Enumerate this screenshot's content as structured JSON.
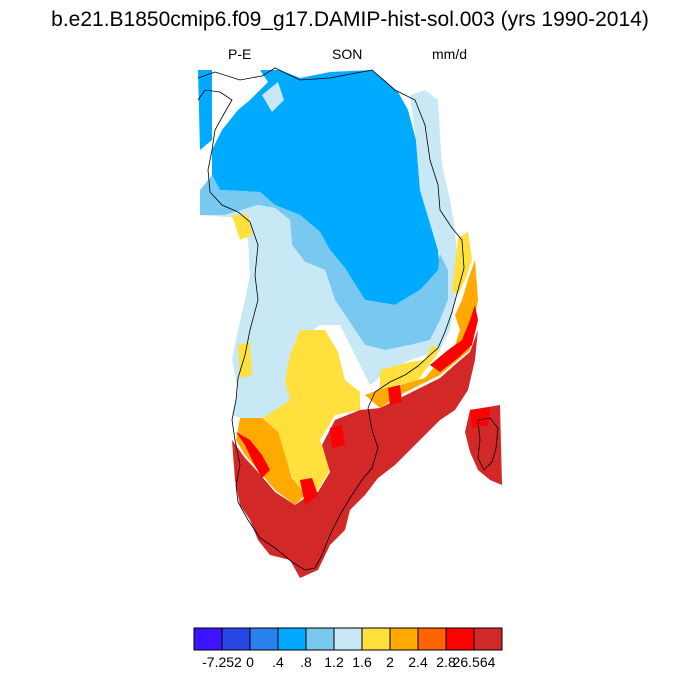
{
  "title": "b.e21.B1850cmip6.f09_g17.DAMIP-hist-sol.003 (yrs 1990-2014)",
  "subtitle_left": "P-E",
  "subtitle_center": "SON",
  "subtitle_right": "mm/d",
  "colorbar": {
    "colors": [
      "#3c14ff",
      "#2846e6",
      "#2a82f0",
      "#00aaff",
      "#78c8f0",
      "#c8e8f5",
      "#ffe03c",
      "#ffaa00",
      "#ff6400",
      "#ff0000",
      "#d22828"
    ],
    "tick_labels": [
      "-7.252",
      "0",
      ".4",
      ".8",
      "1.2",
      "1.6",
      "2",
      "2.4",
      "2.8",
      "26.564"
    ]
  }
}
